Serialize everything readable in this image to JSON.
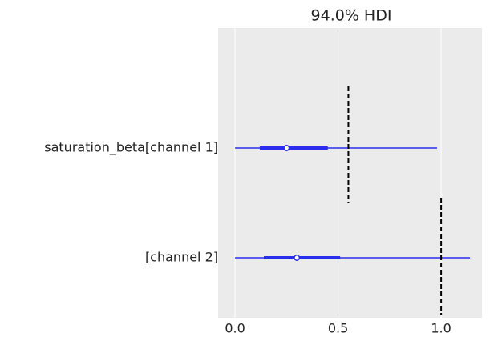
{
  "chart_data": {
    "type": "forest",
    "title": "94.0% HDI",
    "categories": [
      "saturation_beta[channel 1]",
      "[channel 2]"
    ],
    "hdi_low": [
      0.0,
      0.0
    ],
    "hdi_high": [
      0.98,
      1.14
    ],
    "iqr_low": [
      0.12,
      0.14
    ],
    "iqr_high": [
      0.45,
      0.51
    ],
    "median": [
      0.25,
      0.3
    ],
    "reference": [
      0.55,
      1.0
    ],
    "color": "#2a2eec",
    "xlim": [
      -0.082,
      1.198
    ],
    "xticks": [
      {
        "value": 0,
        "label": "0.0"
      },
      {
        "value": 0.5,
        "label": "0.5"
      },
      {
        "value": 1,
        "label": "1.0"
      }
    ],
    "grid": true
  }
}
